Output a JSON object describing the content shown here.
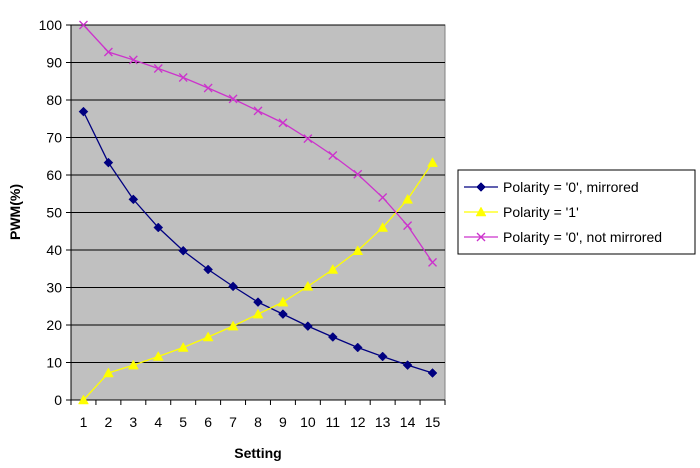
{
  "chart_data": {
    "type": "line",
    "title": "",
    "xlabel": "Setting",
    "ylabel": "PWM(%)",
    "x": [
      1,
      2,
      3,
      4,
      5,
      6,
      7,
      8,
      9,
      10,
      11,
      12,
      13,
      14,
      15
    ],
    "ylim": [
      0,
      100
    ],
    "yticks": [
      0,
      10,
      20,
      30,
      40,
      50,
      60,
      70,
      80,
      90,
      100
    ],
    "grid": "horizontal",
    "plot_background": "#c0c0c0",
    "legend_position": "right",
    "series": [
      {
        "name": "Polarity = '0', mirrored",
        "color": "#000080",
        "marker": "diamond",
        "values": [
          76.9,
          63.3,
          53.5,
          46.0,
          39.8,
          34.8,
          30.3,
          26.1,
          22.9,
          19.7,
          16.8,
          14.0,
          11.6,
          9.3,
          7.2
        ]
      },
      {
        "name": "Polarity = '1'",
        "color": "#ffff00",
        "marker": "triangle",
        "values": [
          0,
          7.2,
          9.3,
          11.6,
          14.0,
          16.8,
          19.7,
          22.9,
          26.1,
          30.3,
          34.8,
          39.8,
          46.0,
          53.5,
          63.3
        ]
      },
      {
        "name": "Polarity = '0', not mirrored",
        "color": "#cc33cc",
        "marker": "x",
        "values": [
          100,
          92.8,
          90.7,
          88.4,
          86.0,
          83.2,
          80.3,
          77.1,
          73.9,
          69.7,
          65.2,
          60.2,
          54.0,
          46.5,
          36.7
        ]
      }
    ]
  }
}
